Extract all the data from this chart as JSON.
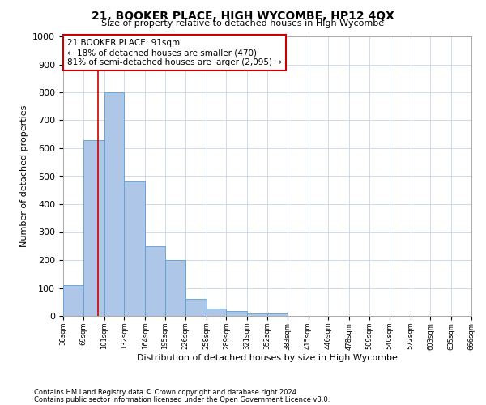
{
  "title": "21, BOOKER PLACE, HIGH WYCOMBE, HP12 4QX",
  "subtitle": "Size of property relative to detached houses in High Wycombe",
  "xlabel": "Distribution of detached houses by size in High Wycombe",
  "ylabel": "Number of detached properties",
  "footnote1": "Contains HM Land Registry data © Crown copyright and database right 2024.",
  "footnote2": "Contains public sector information licensed under the Open Government Licence v3.0.",
  "annotation_line1": "21 BOOKER PLACE: 91sqm",
  "annotation_line2": "← 18% of detached houses are smaller (470)",
  "annotation_line3": "81% of semi-detached houses are larger (2,095) →",
  "property_size": 91,
  "bar_values": [
    110,
    630,
    800,
    480,
    250,
    200,
    60,
    25,
    18,
    10,
    10,
    0,
    0,
    0,
    0,
    0,
    0,
    0,
    0,
    0
  ],
  "bin_edges": [
    38,
    69,
    101,
    132,
    164,
    195,
    226,
    258,
    289,
    321,
    352,
    383,
    415,
    446,
    478,
    509,
    540,
    572,
    603,
    635,
    666
  ],
  "bar_color": "#aec6e8",
  "bar_edge_color": "#5a9fd4",
  "vline_color": "#cc0000",
  "vline_x": 91,
  "annotation_box_color": "#cc0000",
  "background_color": "#ffffff",
  "grid_color": "#c8d4e8",
  "ylim": [
    0,
    1000
  ],
  "yticks": [
    0,
    100,
    200,
    300,
    400,
    500,
    600,
    700,
    800,
    900,
    1000
  ],
  "title_fontsize": 10,
  "subtitle_fontsize": 8,
  "ylabel_fontsize": 8,
  "xlabel_fontsize": 8,
  "ytick_fontsize": 8,
  "xtick_fontsize": 6,
  "footnote_fontsize": 6
}
